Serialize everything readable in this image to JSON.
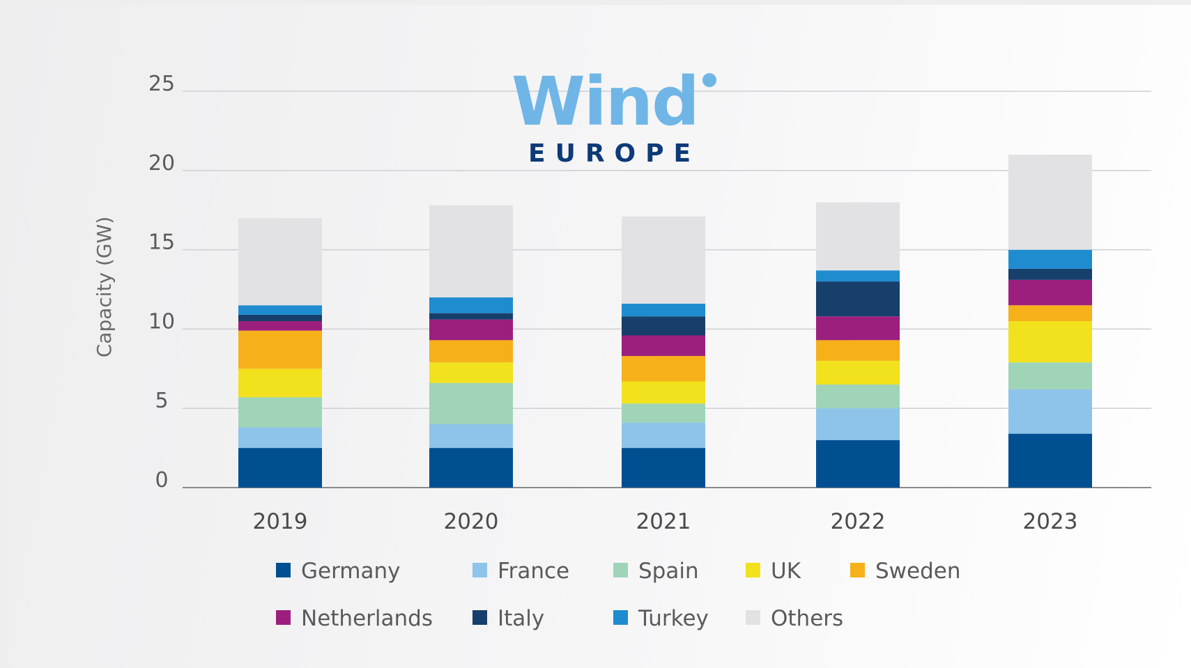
{
  "logo": {
    "word": "Wind",
    "sub": "EUROPE"
  },
  "chart_data": {
    "type": "bar",
    "stacked": true,
    "ylabel": "Capacity (GW)",
    "xlabel": "",
    "ylim": [
      0,
      25
    ],
    "yticks": [
      0,
      5,
      10,
      15,
      20,
      25
    ],
    "grid": true,
    "legend_position": "bottom",
    "categories": [
      "2019",
      "2020",
      "2021",
      "2022",
      "2023"
    ],
    "series": [
      {
        "name": "Germany",
        "color": "#004f91",
        "values": [
          2.5,
          2.5,
          2.5,
          3.0,
          3.4
        ]
      },
      {
        "name": "France",
        "color": "#8ec4ea",
        "values": [
          1.3,
          1.5,
          1.6,
          2.0,
          2.8
        ]
      },
      {
        "name": "Spain",
        "color": "#9fd4b8",
        "values": [
          1.9,
          2.6,
          1.2,
          1.5,
          1.7
        ]
      },
      {
        "name": "UK",
        "color": "#f2e11d",
        "values": [
          1.8,
          1.3,
          1.4,
          1.5,
          2.6
        ]
      },
      {
        "name": "Sweden",
        "color": "#f5b01a",
        "values": [
          2.4,
          1.4,
          1.6,
          1.3,
          1.0
        ]
      },
      {
        "name": "Netherlands",
        "color": "#9c1f7e",
        "values": [
          0.6,
          1.3,
          1.3,
          1.5,
          1.6
        ]
      },
      {
        "name": "Italy",
        "color": "#173f6b",
        "values": [
          0.4,
          0.4,
          1.2,
          2.2,
          0.7
        ]
      },
      {
        "name": "Turkey",
        "color": "#1f8ccf",
        "values": [
          0.6,
          1.0,
          0.8,
          0.7,
          1.2
        ]
      },
      {
        "name": "Others",
        "color": "#e2e2e4",
        "values": [
          5.5,
          5.8,
          5.5,
          4.3,
          6.0
        ]
      }
    ]
  }
}
